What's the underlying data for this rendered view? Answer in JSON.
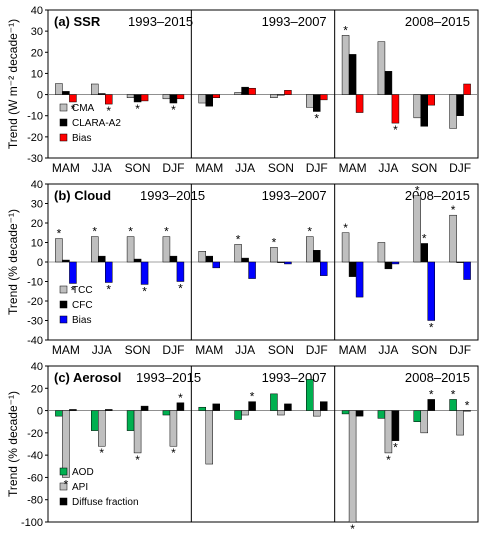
{
  "colors": {
    "cma_tcc_api": "#bfbfbf",
    "clara_cfc_diffuse": "#000000",
    "bias_ssr": "#ff0000",
    "bias_cloud": "#0000ff",
    "aod": "#00b050"
  },
  "chart_data": [
    {
      "type": "bar",
      "title": "(a) SSR",
      "ylabel": "Trend (W m⁻² decade⁻¹)",
      "ylim": [
        -30,
        40
      ],
      "yticks": [
        -30,
        -20,
        -10,
        0,
        10,
        20,
        30,
        40
      ],
      "periods": [
        "1993–2015",
        "1993–2007",
        "2008–2015"
      ],
      "categories": [
        "MAM",
        "JJA",
        "SON",
        "DJF"
      ],
      "legend_position": "bottom-left",
      "series": [
        {
          "name": "CMA",
          "color": "#bfbfbf",
          "values": [
            [
              5.2,
              5.0,
              -1.5,
              -2.0
            ],
            [
              -4.0,
              1.0,
              -1.5,
              -6.0
            ],
            [
              28.0,
              25.0,
              -11.0,
              -16.0
            ]
          ]
        },
        {
          "name": "CLARA-A2",
          "color": "#000000",
          "values": [
            [
              1.5,
              0.5,
              -3.5,
              -4.0
            ],
            [
              -5.5,
              3.5,
              0.0,
              -8.0
            ],
            [
              19.0,
              11.0,
              -15.0,
              -10.0
            ]
          ]
        },
        {
          "name": "Bias",
          "color": "#ff0000",
          "values": [
            [
              -3.5,
              -4.5,
              -3.0,
              -2.0
            ],
            [
              -1.5,
              3.0,
              2.0,
              -2.5
            ],
            [
              -8.5,
              -13.5,
              -5.0,
              5.0
            ]
          ]
        }
      ],
      "asterisks": [
        "*",
        "*",
        "*",
        "*",
        "*",
        "*",
        "*"
      ]
    },
    {
      "type": "bar",
      "title": "(b) Cloud",
      "ylabel": "Trend (% decade⁻¹)",
      "ylim": [
        -40,
        40
      ],
      "yticks": [
        -40,
        -30,
        -20,
        -10,
        0,
        10,
        20,
        30,
        40
      ],
      "periods": [
        "1993–2015",
        "1993–2007",
        "2008–2015"
      ],
      "categories": [
        "MAM",
        "JJA",
        "SON",
        "DJF"
      ],
      "legend_position": "bottom-left",
      "series": [
        {
          "name": "TCC",
          "color": "#bfbfbf",
          "values": [
            [
              12.0,
              13.0,
              13.0,
              13.0
            ],
            [
              5.5,
              9.0,
              7.5,
              13.0
            ],
            [
              15.0,
              10.0,
              34.0,
              24.0
            ]
          ]
        },
        {
          "name": "CFC",
          "color": "#000000",
          "values": [
            [
              1.0,
              3.0,
              1.5,
              3.0
            ],
            [
              3.0,
              2.0,
              0.0,
              6.0
            ],
            [
              -7.5,
              -3.5,
              9.5,
              0.0
            ]
          ]
        },
        {
          "name": "Bias",
          "color": "#0000ff",
          "values": [
            [
              -11.0,
              -10.5,
              -11.5,
              -10.0
            ],
            [
              -3.0,
              -8.5,
              -1.0,
              -7.0
            ],
            [
              -18.0,
              -1.0,
              -30.0,
              -9.0
            ]
          ]
        }
      ],
      "asterisks": [
        "*",
        "*",
        "*",
        "*",
        "*",
        "*",
        "*",
        "*",
        "*",
        "*",
        "*",
        "*",
        "*",
        "*",
        "*",
        "*"
      ]
    },
    {
      "type": "bar",
      "title": "(c) Aerosol",
      "ylabel": "Trend (% decade⁻¹)",
      "ylim": [
        -100,
        40
      ],
      "yticks": [
        -100,
        -80,
        -60,
        -40,
        -20,
        0,
        20,
        40
      ],
      "periods": [
        "1993–2015",
        "1993–2007",
        "2008–2015"
      ],
      "categories": [
        "MAM",
        "JJA",
        "SON",
        "DJF"
      ],
      "legend_position": "bottom-left",
      "series": [
        {
          "name": "AOD",
          "color": "#00b050",
          "values": [
            [
              -5.0,
              -18.0,
              -18.0,
              -4.0
            ],
            [
              3.0,
              -8.0,
              15.0,
              28.0
            ],
            [
              -3.0,
              -7.0,
              -10.0,
              10.0
            ]
          ]
        },
        {
          "name": "API",
          "color": "#bfbfbf",
          "values": [
            [
              -60.0,
              -32.0,
              -38.0,
              -32.0
            ],
            [
              -48.0,
              -4.0,
              -4.0,
              -5.0
            ],
            [
              -100.0,
              -38.0,
              -20.0,
              -22.0
            ]
          ]
        },
        {
          "name": "Diffuse fraction",
          "color": "#000000",
          "values": [
            [
              1.0,
              1.0,
              4.0,
              7.0
            ],
            [
              6.0,
              8.0,
              6.0,
              8.0
            ],
            [
              -5.0,
              -27.0,
              10.0,
              0.0
            ]
          ]
        }
      ],
      "asterisks": [
        "*",
        "*",
        "*",
        "*",
        "*",
        "*",
        "*",
        "*",
        "*",
        "*",
        "*",
        "*"
      ]
    }
  ]
}
